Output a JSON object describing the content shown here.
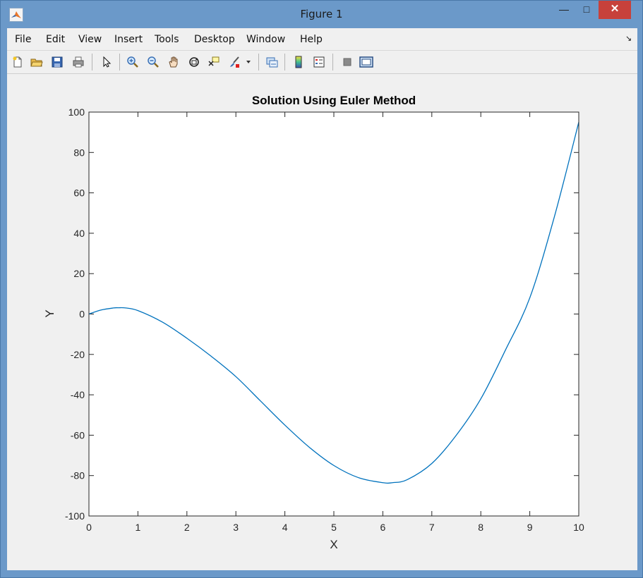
{
  "window": {
    "title": "Figure 1",
    "minimize_glyph": "—",
    "maximize_glyph": "□",
    "close_glyph": "✕"
  },
  "menu": {
    "items": [
      "File",
      "Edit",
      "View",
      "Insert",
      "Tools",
      "Desktop",
      "Window",
      "Help"
    ],
    "arrow_glyph": "↘"
  },
  "toolbar": {
    "icons": [
      "new-figure-icon",
      "open-file-icon",
      "save-figure-icon",
      "print-figure-icon",
      "edit-plot-icon",
      "zoom-in-icon",
      "zoom-out-icon",
      "pan-icon",
      "rotate-3d-icon",
      "data-cursor-icon",
      "brush-icon",
      "dropdown-arrow-icon",
      "link-plot-icon",
      "insert-colorbar-icon",
      "insert-legend-icon",
      "hide-plot-tools-icon",
      "show-plot-tools-icon"
    ]
  },
  "colors": {
    "line": "#0072bd",
    "axes_background": "#ffffff",
    "figure_background": "#f0f0f0",
    "close_button": "#c7413b",
    "window_frame": "#6b99c9"
  },
  "chart_data": {
    "type": "line",
    "title": "Solution Using Euler Method",
    "xlabel": "X",
    "ylabel": "Y",
    "xlim": [
      0,
      10
    ],
    "ylim": [
      -100,
      100
    ],
    "xticks": [
      0,
      1,
      2,
      3,
      4,
      5,
      6,
      7,
      8,
      9,
      10
    ],
    "yticks": [
      -100,
      -80,
      -60,
      -40,
      -20,
      0,
      20,
      40,
      60,
      80,
      100
    ],
    "grid": false,
    "series": [
      {
        "x": [
          0,
          0.25,
          0.5,
          0.6,
          0.75,
          1,
          1.5,
          2,
          2.5,
          3,
          3.5,
          4,
          4.5,
          5,
          5.5,
          6,
          6.2,
          6.5,
          7,
          7.5,
          8,
          8.5,
          9,
          9.5,
          10
        ],
        "y": [
          0,
          2,
          3,
          3.1,
          3,
          1.7,
          -4,
          -12,
          -21,
          -31,
          -43,
          -55,
          -66,
          -75,
          -81,
          -83.5,
          -83.5,
          -82,
          -74,
          -60,
          -42,
          -18,
          8,
          48,
          95
        ]
      }
    ]
  }
}
